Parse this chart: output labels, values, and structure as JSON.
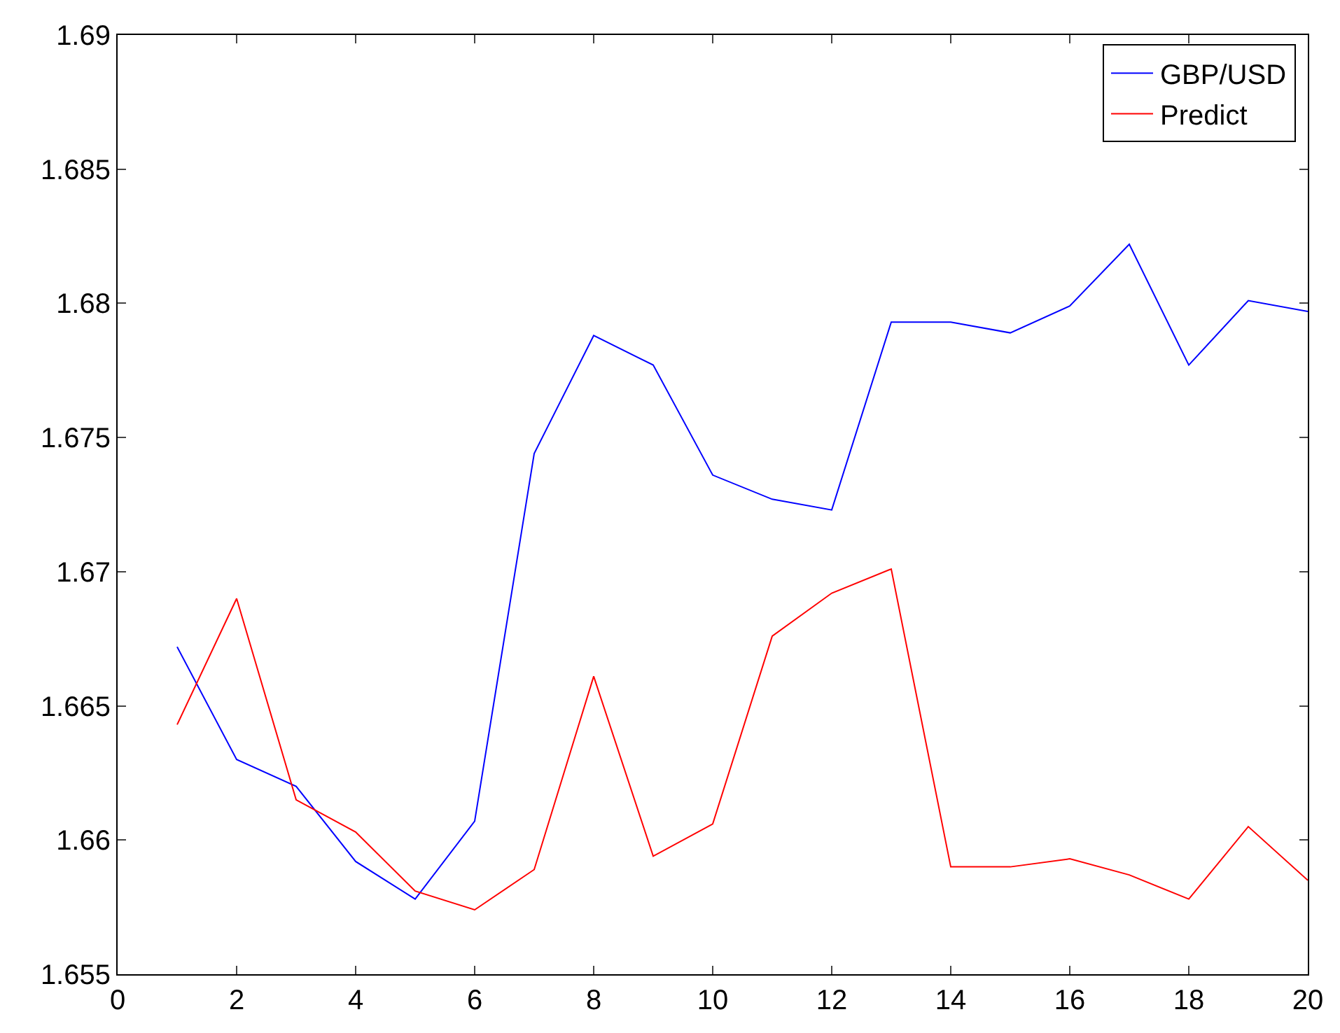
{
  "chart_data": {
    "type": "line",
    "x": [
      1,
      2,
      3,
      4,
      5,
      6,
      7,
      8,
      9,
      10,
      11,
      12,
      13,
      14,
      15,
      16,
      17,
      18,
      19,
      20
    ],
    "series": [
      {
        "name": "GBP/USD",
        "color": "#0000ff",
        "values": [
          1.6672,
          1.663,
          1.662,
          1.6592,
          1.6578,
          1.6607,
          1.6744,
          1.6788,
          1.6777,
          1.6736,
          1.6727,
          1.6723,
          1.6793,
          1.6793,
          1.6789,
          1.6799,
          1.6822,
          1.6777,
          1.6801,
          1.6797
        ]
      },
      {
        "name": "Predict",
        "color": "#ff0000",
        "values": [
          1.6643,
          1.669,
          1.6615,
          1.6603,
          1.6581,
          1.6574,
          1.6589,
          1.6661,
          1.6594,
          1.6606,
          1.6676,
          1.6692,
          1.6701,
          1.659,
          1.659,
          1.6593,
          1.6587,
          1.6578,
          1.6605,
          1.6585
        ]
      }
    ],
    "xlim": [
      0,
      20
    ],
    "xticks": [
      0,
      2,
      4,
      6,
      8,
      10,
      12,
      14,
      16,
      18,
      20
    ],
    "ylim": [
      1.655,
      1.69
    ],
    "yticks": [
      1.655,
      1.66,
      1.665,
      1.67,
      1.675,
      1.68,
      1.685,
      1.69
    ],
    "grid": false,
    "legend": "top right",
    "marker": "none",
    "line_style": "solid"
  }
}
